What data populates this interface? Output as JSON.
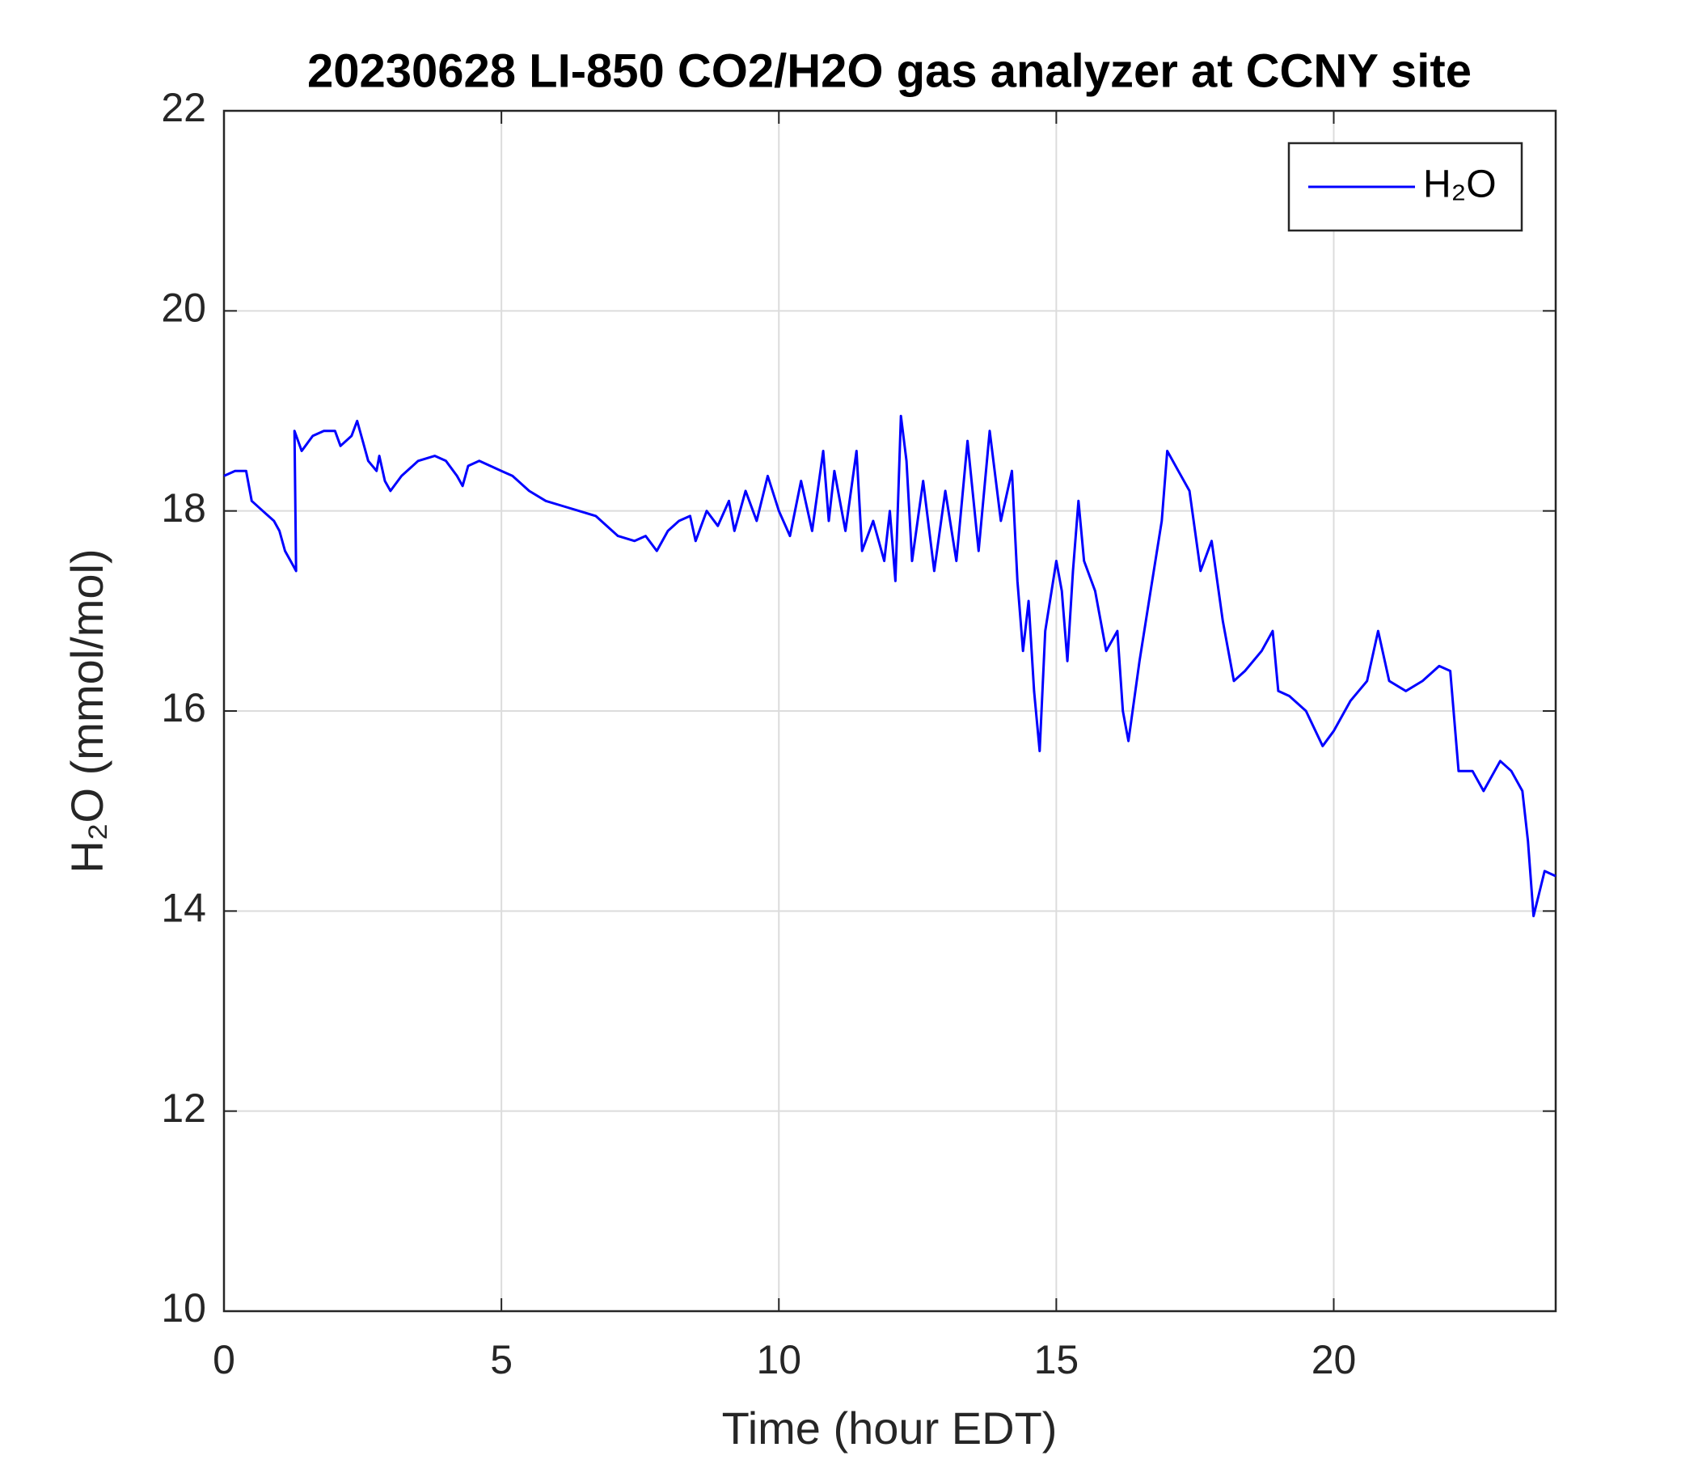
{
  "chart_data": {
    "type": "line",
    "title": "20230628 LI-850 CO2/H2O gas analyzer at CCNY site",
    "x_label": "Time (hour EDT)",
    "y_label": "H₂O (mmol/mol)",
    "xlim": [
      0,
      24
    ],
    "xticks": [
      0,
      5,
      10,
      15,
      20
    ],
    "ylim": [
      10,
      22
    ],
    "yticks": [
      10,
      12,
      14,
      16,
      18,
      20,
      22
    ],
    "grid": true,
    "legend_position": "upper-right",
    "x": [
      0,
      0.2,
      0.4,
      0.5,
      0.7,
      0.9,
      1.0,
      1.1,
      1.2,
      1.25,
      1.3,
      1.27,
      1.4,
      1.6,
      1.8,
      2.0,
      2.1,
      2.3,
      2.4,
      2.5,
      2.6,
      2.75,
      2.8,
      2.9,
      3.0,
      3.2,
      3.5,
      3.8,
      4.0,
      4.2,
      4.3,
      4.4,
      4.6,
      4.8,
      5.0,
      5.2,
      5.5,
      5.8,
      6.1,
      6.4,
      6.7,
      6.9,
      7.1,
      7.4,
      7.6,
      7.8,
      8.0,
      8.2,
      8.4,
      8.5,
      8.7,
      8.9,
      9.1,
      9.2,
      9.4,
      9.6,
      9.8,
      10.0,
      10.2,
      10.4,
      10.6,
      10.8,
      10.9,
      11.0,
      11.2,
      11.4,
      11.5,
      11.7,
      11.9,
      12.0,
      12.1,
      12.2,
      12.3,
      12.4,
      12.6,
      12.8,
      13.0,
      13.2,
      13.4,
      13.6,
      13.8,
      14.0,
      14.2,
      14.3,
      14.4,
      14.5,
      14.6,
      14.7,
      14.8,
      15.0,
      15.1,
      15.2,
      15.3,
      15.4,
      15.5,
      15.7,
      15.9,
      16.1,
      16.2,
      16.3,
      16.5,
      16.7,
      16.9,
      17.0,
      17.2,
      17.4,
      17.6,
      17.8,
      18.0,
      18.2,
      18.4,
      18.7,
      18.9,
      19.0,
      19.2,
      19.5,
      19.8,
      20.0,
      20.3,
      20.6,
      20.8,
      21.0,
      21.3,
      21.6,
      21.9,
      22.1,
      22.25,
      22.5,
      22.7,
      23.0,
      23.2,
      23.4,
      23.5,
      23.6,
      23.8,
      24.0
    ],
    "series": [
      {
        "name": "H₂O",
        "color": "#0000ff",
        "values": [
          18.35,
          18.4,
          18.4,
          18.1,
          18.0,
          17.9,
          17.8,
          17.6,
          17.5,
          17.45,
          17.4,
          18.8,
          18.6,
          18.75,
          18.8,
          18.8,
          18.65,
          18.75,
          18.9,
          18.7,
          18.5,
          18.4,
          18.55,
          18.3,
          18.2,
          18.35,
          18.5,
          18.55,
          18.5,
          18.35,
          18.25,
          18.45,
          18.5,
          18.45,
          18.4,
          18.35,
          18.2,
          18.1,
          18.05,
          18.0,
          17.95,
          17.85,
          17.75,
          17.7,
          17.75,
          17.6,
          17.8,
          17.9,
          17.95,
          17.7,
          18.0,
          17.85,
          18.1,
          17.8,
          18.2,
          17.9,
          18.35,
          18.0,
          17.75,
          18.3,
          17.8,
          18.6,
          17.9,
          18.4,
          17.8,
          18.6,
          17.6,
          17.9,
          17.5,
          18.0,
          17.3,
          18.95,
          18.5,
          17.5,
          18.3,
          17.4,
          18.2,
          17.5,
          18.7,
          17.6,
          18.8,
          17.9,
          18.4,
          17.3,
          16.6,
          17.1,
          16.2,
          15.6,
          16.8,
          17.5,
          17.2,
          16.5,
          17.4,
          18.1,
          17.5,
          17.2,
          16.6,
          16.8,
          16.0,
          15.7,
          16.5,
          17.2,
          17.9,
          18.6,
          18.4,
          18.2,
          17.4,
          17.7,
          16.9,
          16.3,
          16.4,
          16.6,
          16.8,
          16.2,
          16.15,
          16.0,
          15.65,
          15.8,
          16.1,
          16.3,
          16.8,
          16.3,
          16.2,
          16.3,
          16.45,
          16.4,
          15.4,
          15.4,
          15.2,
          15.5,
          15.4,
          15.2,
          14.7,
          13.95,
          14.4,
          14.35
        ]
      }
    ]
  }
}
